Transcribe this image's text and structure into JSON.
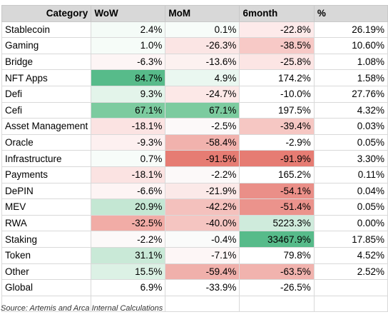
{
  "headers": [
    "Category",
    "WoW",
    "MoM",
    "6month",
    "%"
  ],
  "rows": [
    {
      "name": "Stablecoin",
      "cells": [
        {
          "text": "2.4%",
          "bg": "#f4fbf7"
        },
        {
          "text": "0.1%",
          "bg": "#f7fcf9"
        },
        {
          "text": "-22.8%",
          "bg": "#fdeaea"
        },
        {
          "text": "26.19%",
          "bg": "#ffffff"
        }
      ]
    },
    {
      "name": "Gaming",
      "cells": [
        {
          "text": "1.0%",
          "bg": "#f6fcf8"
        },
        {
          "text": "-26.3%",
          "bg": "#fbe5e4"
        },
        {
          "text": "-38.5%",
          "bg": "#f7c9c6"
        },
        {
          "text": "10.60%",
          "bg": "#ffffff"
        }
      ]
    },
    {
      "name": "Bridge",
      "cells": [
        {
          "text": "-6.3%",
          "bg": "#fdf5f5"
        },
        {
          "text": "-13.6%",
          "bg": "#fcf1f0"
        },
        {
          "text": "-25.8%",
          "bg": "#fce5e4"
        },
        {
          "text": "1.08%",
          "bg": "#ffffff"
        }
      ]
    },
    {
      "name": "NFT Apps",
      "cells": [
        {
          "text": "84.7%",
          "bg": "#57bb8a"
        },
        {
          "text": "4.9%",
          "bg": "#eaf7f0"
        },
        {
          "text": "174.2%",
          "bg": "#ffffff"
        },
        {
          "text": "1.58%",
          "bg": "#ffffff"
        }
      ]
    },
    {
      "name": "Defi",
      "cells": [
        {
          "text": "9.3%",
          "bg": "#e3f4ea"
        },
        {
          "text": "-24.7%",
          "bg": "#fce8e7"
        },
        {
          "text": "-10.0%",
          "bg": "#ffffff"
        },
        {
          "text": "27.76%",
          "bg": "#ffffff"
        }
      ]
    },
    {
      "name": "Cefi",
      "cells": [
        {
          "text": "67.1%",
          "bg": "#7ccb9f"
        },
        {
          "text": "67.1%",
          "bg": "#7ccb9f"
        },
        {
          "text": "197.5%",
          "bg": "#ffffff"
        },
        {
          "text": "4.32%",
          "bg": "#ffffff"
        }
      ]
    },
    {
      "name": "Asset Management",
      "cells": [
        {
          "text": "-18.1%",
          "bg": "#fbe3e2"
        },
        {
          "text": "-2.5%",
          "bg": "#fcf9f9"
        },
        {
          "text": "-39.4%",
          "bg": "#f6c7c3"
        },
        {
          "text": "0.03%",
          "bg": "#ffffff"
        }
      ]
    },
    {
      "name": "Oracle",
      "cells": [
        {
          "text": "-9.3%",
          "bg": "#fdf0f0"
        },
        {
          "text": "-58.4%",
          "bg": "#f1b2ad"
        },
        {
          "text": "-2.9%",
          "bg": "#ffffff"
        },
        {
          "text": "0.05%",
          "bg": "#ffffff"
        }
      ]
    },
    {
      "name": "Infrastructure",
      "cells": [
        {
          "text": "0.7%",
          "bg": "#f7fcf9"
        },
        {
          "text": "-91.5%",
          "bg": "#e67c73"
        },
        {
          "text": "-91.9%",
          "bg": "#e67c73"
        },
        {
          "text": "3.30%",
          "bg": "#ffffff"
        }
      ]
    },
    {
      "name": "Payments",
      "cells": [
        {
          "text": "-18.1%",
          "bg": "#fbe3e2"
        },
        {
          "text": "-2.2%",
          "bg": "#fcf9f9"
        },
        {
          "text": "165.2%",
          "bg": "#ffffff"
        },
        {
          "text": "0.11%",
          "bg": "#ffffff"
        }
      ]
    },
    {
      "name": "DePIN",
      "cells": [
        {
          "text": "-6.6%",
          "bg": "#fdf4f4"
        },
        {
          "text": "-21.9%",
          "bg": "#fbe9e8"
        },
        {
          "text": "-54.1%",
          "bg": "#ea8f88"
        },
        {
          "text": "0.04%",
          "bg": "#ffffff"
        }
      ]
    },
    {
      "name": "MEV",
      "cells": [
        {
          "text": "20.9%",
          "bg": "#c4e7d3"
        },
        {
          "text": "-42.2%",
          "bg": "#f4c1bd"
        },
        {
          "text": "-51.4%",
          "bg": "#eb938c"
        },
        {
          "text": "0.05%",
          "bg": "#ffffff"
        }
      ]
    },
    {
      "name": "RWA",
      "cells": [
        {
          "text": "-32.5%",
          "bg": "#f1aca6"
        },
        {
          "text": "-40.0%",
          "bg": "#f5c5c1"
        },
        {
          "text": "5223.3%",
          "bg": "#cfebdc"
        },
        {
          "text": "0.00%",
          "bg": "#ffffff"
        }
      ]
    },
    {
      "name": "Staking",
      "cells": [
        {
          "text": "-2.2%",
          "bg": "#fcf9f9"
        },
        {
          "text": "-0.4%",
          "bg": "#fafbfa"
        },
        {
          "text": "33467.9%",
          "bg": "#57bb8a"
        },
        {
          "text": "17.85%",
          "bg": "#ffffff"
        }
      ]
    },
    {
      "name": "Token",
      "cells": [
        {
          "text": "31.1%",
          "bg": "#c9e9d7"
        },
        {
          "text": "-7.1%",
          "bg": "#fdf6f6"
        },
        {
          "text": "79.8%",
          "bg": "#ffffff"
        },
        {
          "text": "4.52%",
          "bg": "#ffffff"
        }
      ]
    },
    {
      "name": "Other",
      "cells": [
        {
          "text": "15.5%",
          "bg": "#dcf1e5"
        },
        {
          "text": "-59.4%",
          "bg": "#f0b0ab"
        },
        {
          "text": "-63.5%",
          "bg": "#f1b3ae"
        },
        {
          "text": "2.52%",
          "bg": "#ffffff"
        }
      ]
    },
    {
      "name": "Global",
      "cells": [
        {
          "text": "6.9%",
          "bg": "#ffffff"
        },
        {
          "text": "-33.9%",
          "bg": "#ffffff"
        },
        {
          "text": "-26.5%",
          "bg": "#ffffff"
        },
        {
          "text": "",
          "bg": "#ffffff"
        }
      ]
    },
    {
      "name": "",
      "cells": [
        {
          "text": "",
          "bg": "#ffffff"
        },
        {
          "text": "",
          "bg": "#ffffff"
        },
        {
          "text": "",
          "bg": "#ffffff"
        },
        {
          "text": "",
          "bg": "#ffffff"
        }
      ]
    }
  ],
  "source_note": "Source: Artemis and Arca Internal Calculations"
}
